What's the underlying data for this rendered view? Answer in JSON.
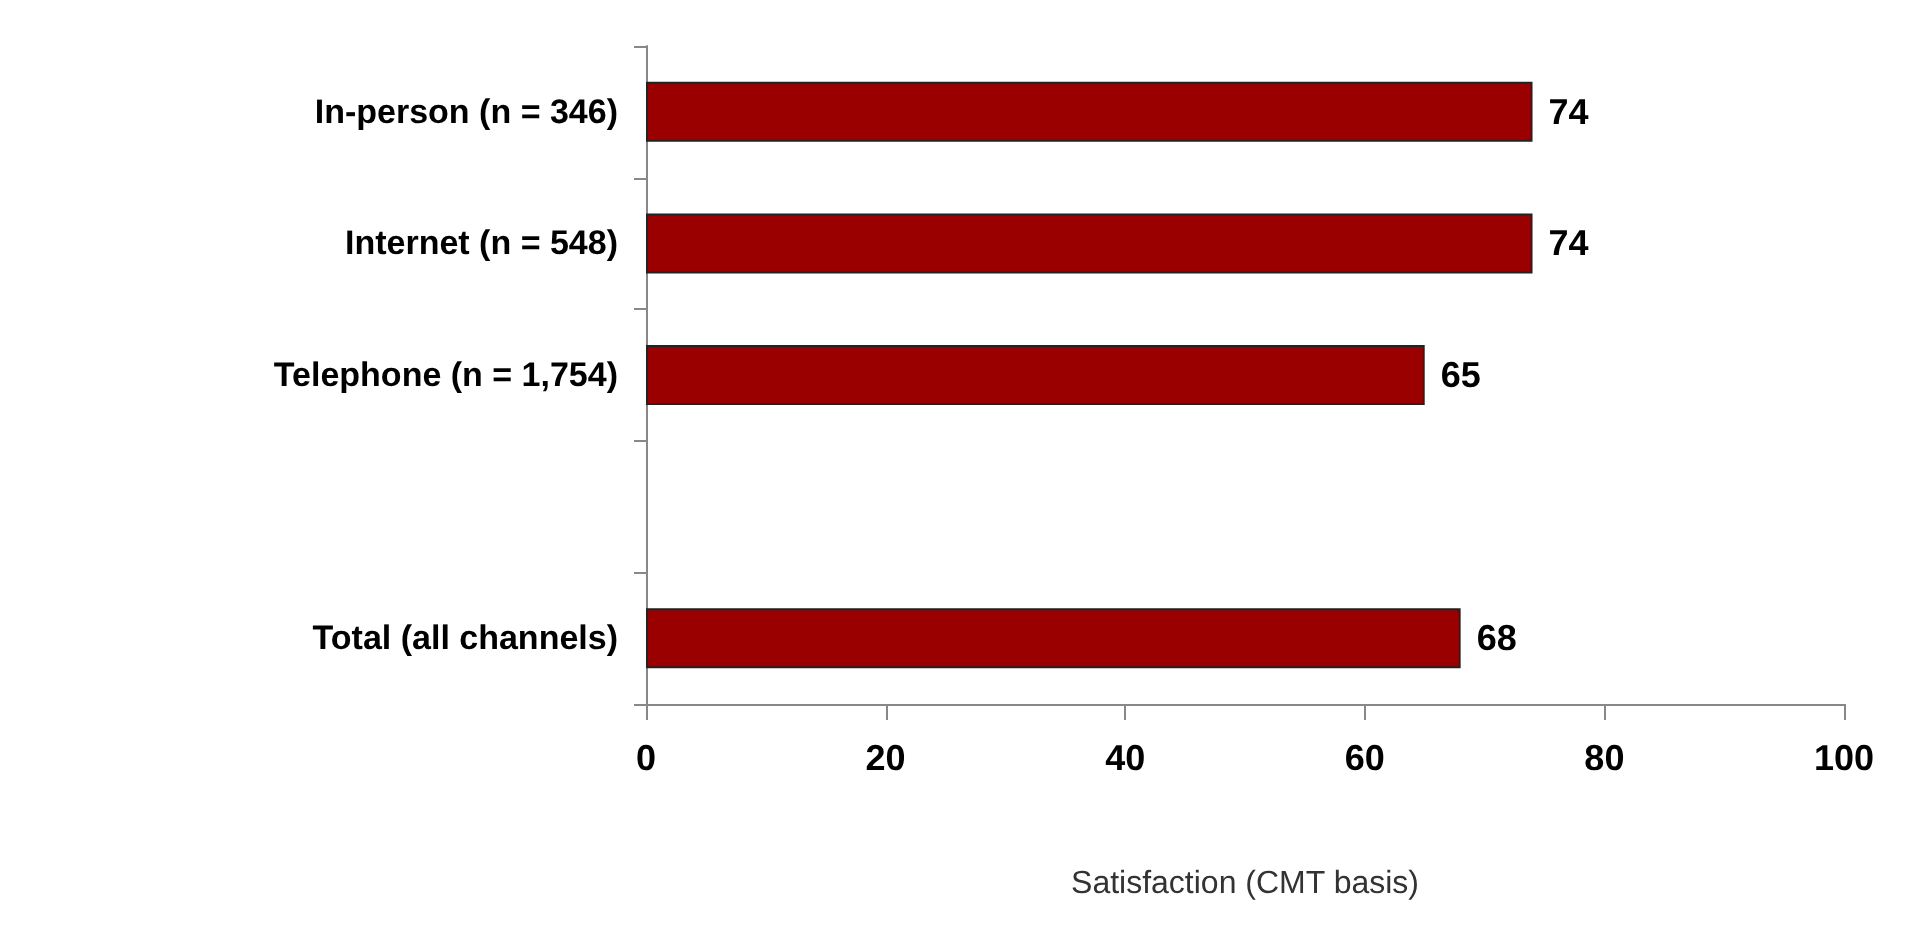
{
  "chart_data": {
    "type": "bar",
    "orientation": "horizontal",
    "xlabel": "Satisfaction (CMT basis)",
    "categories": [
      "In-person (n = 346)",
      "Internet (n = 548)",
      "Telephone (n = 1,754)",
      null,
      "Total (all channels)"
    ],
    "values": [
      74,
      74,
      65,
      null,
      68
    ],
    "color": "#9b0000",
    "xlim": [
      0,
      100
    ],
    "xticks": [
      0,
      20,
      40,
      60,
      80,
      100
    ],
    "data_labels": true,
    "grid": false
  }
}
